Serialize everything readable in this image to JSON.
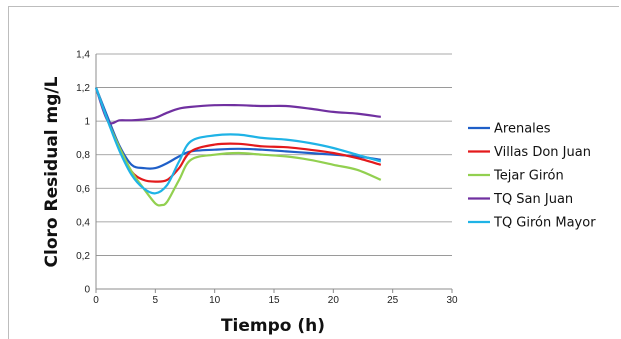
{
  "chart_data": {
    "type": "line",
    "xlabel": "Tiempo (h)",
    "ylabel": "Cloro Residual mg/L",
    "xlim": [
      0,
      30
    ],
    "ylim": [
      0,
      1.4
    ],
    "xticks": [
      0,
      5,
      10,
      15,
      20,
      25,
      30
    ],
    "yticks": [
      0,
      0.2,
      0.4,
      0.6,
      0.8,
      1,
      1.2,
      1.4
    ],
    "ytick_labels": [
      "0",
      "0,2",
      "0,4",
      "0,6",
      "0,8",
      "1",
      "1,2",
      "1,4"
    ],
    "grid": "horizontal",
    "legend_position": "right",
    "series": [
      {
        "name": "Arenales",
        "color": "#1f5fc8",
        "x": [
          0,
          1,
          2,
          3,
          4,
          5,
          6,
          7,
          8,
          10,
          12,
          14,
          16,
          18,
          20,
          22,
          24
        ],
        "y": [
          1.2,
          1.02,
          0.85,
          0.74,
          0.72,
          0.72,
          0.75,
          0.79,
          0.82,
          0.83,
          0.835,
          0.83,
          0.82,
          0.81,
          0.8,
          0.79,
          0.77
        ]
      },
      {
        "name": "Villas Don Juan",
        "color": "#e31a1c",
        "x": [
          0,
          1,
          2,
          3,
          4,
          5,
          6,
          7,
          8,
          10,
          12,
          14,
          16,
          18,
          20,
          22,
          24
        ],
        "y": [
          1.2,
          1.0,
          0.84,
          0.7,
          0.65,
          0.64,
          0.65,
          0.72,
          0.82,
          0.86,
          0.865,
          0.85,
          0.845,
          0.83,
          0.81,
          0.78,
          0.74
        ]
      },
      {
        "name": "Tejar Girón",
        "color": "#92d050",
        "x": [
          0,
          1,
          2,
          3,
          4,
          5,
          5.5,
          6,
          7,
          8,
          10,
          12,
          14,
          16,
          18,
          20,
          22,
          24
        ],
        "y": [
          1.2,
          1.0,
          0.84,
          0.7,
          0.6,
          0.51,
          0.5,
          0.52,
          0.65,
          0.77,
          0.8,
          0.81,
          0.8,
          0.79,
          0.77,
          0.74,
          0.71,
          0.65
        ]
      },
      {
        "name": "TQ San Juan",
        "color": "#7030a0",
        "x": [
          0,
          1,
          2,
          3,
          4,
          5,
          6,
          7,
          8,
          10,
          12,
          14,
          16,
          18,
          20,
          22,
          24
        ],
        "y": [
          1.2,
          1.0,
          1.005,
          1.005,
          1.01,
          1.02,
          1.05,
          1.075,
          1.085,
          1.095,
          1.095,
          1.09,
          1.09,
          1.075,
          1.055,
          1.045,
          1.025
        ]
      },
      {
        "name": "TQ Girón Mayor",
        "color": "#1fb3e6",
        "x": [
          0,
          1,
          2,
          3,
          4,
          5,
          6,
          7,
          8,
          10,
          12,
          14,
          16,
          18,
          20,
          22,
          24
        ],
        "y": [
          1.2,
          1.0,
          0.82,
          0.68,
          0.6,
          0.57,
          0.62,
          0.76,
          0.88,
          0.915,
          0.92,
          0.9,
          0.89,
          0.87,
          0.84,
          0.8,
          0.76
        ]
      }
    ]
  }
}
